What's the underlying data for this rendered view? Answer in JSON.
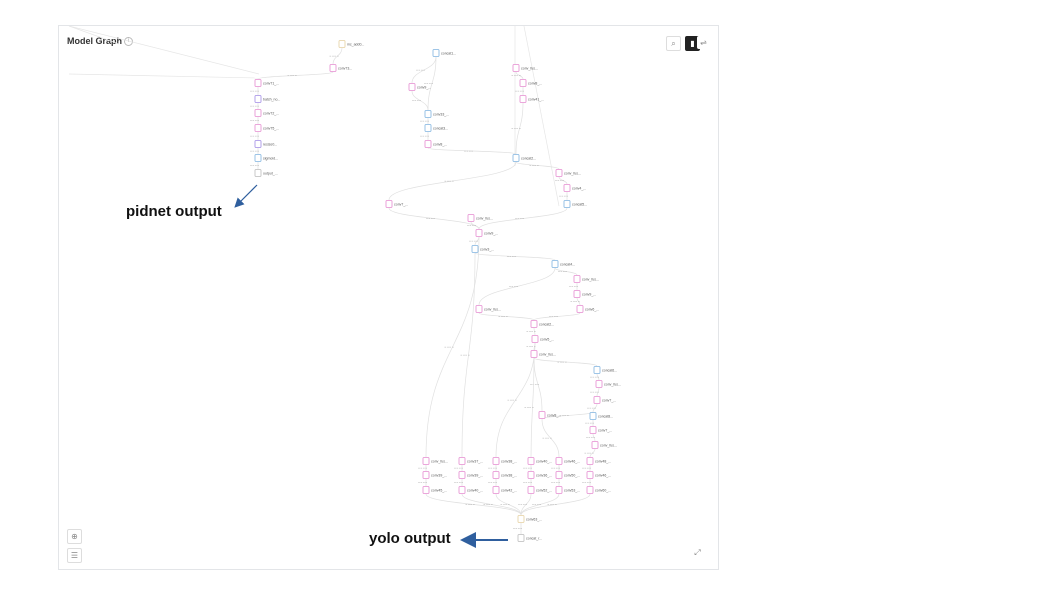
{
  "panel": {
    "title": "Model Graph",
    "info_icon": "info-icon"
  },
  "toolbar": {
    "search_icon": "search-icon",
    "layout_toggle_icons": [
      "vertical-layout-icon",
      "horizontal-layout-icon"
    ]
  },
  "bottom_controls": {
    "zoom_fit_icon": "zoom-icon",
    "list_icon": "list-icon",
    "fullscreen_icon": "expand-icon"
  },
  "annotations": {
    "pidnet": "pidnet output",
    "yolo": "yolo output"
  },
  "colors": {
    "conv_node": "#e58bd0",
    "batchnorm_node": "#a08be5",
    "sigmoid_node": "#7fb3e0",
    "output_node": "#bbbbbb",
    "add_node": "#e5d0a0",
    "arrow": "#2f5f9e"
  },
  "nodes": [
    "mc_add0...",
    "conv73...",
    "conv71_...",
    "batch_no...",
    "conv72_...",
    "conv75_...",
    "resize0...",
    "sigmoid...",
    "output_...",
    "concat1...",
    "conv_fus...",
    "conv9_...",
    "conv8_...",
    "conv41_...",
    "conv33_...",
    "concat3...",
    "conv8_...",
    "concat2...",
    "conv_fus...",
    "conv4_...",
    "conv7_...",
    "conv_fus...",
    "concat5...",
    "conv9_...",
    "conv3_...",
    "concat4...",
    "conv_fus...",
    "conv9_...",
    "conv6_...",
    "conv_fus...",
    "concat2...",
    "conv5_...",
    "conv_fus...",
    "concat6...",
    "conv_fus...",
    "conv7_...",
    "conv8_...",
    "concat8...",
    "conv7_...",
    "conv_fus...",
    "conv_fus...",
    "conv37_...",
    "conv38_...",
    "conv40_...",
    "conv46_...",
    "conv48_...",
    "conv39_...",
    "conv39_...",
    "conv38_...",
    "conv36_...",
    "conv50_...",
    "conv46_...",
    "conv45_...",
    "conv40_...",
    "conv42_...",
    "conv52_...",
    "conv53_...",
    "conv60_...",
    "conv63_...",
    "concat_r...",
    "postpro..."
  ]
}
